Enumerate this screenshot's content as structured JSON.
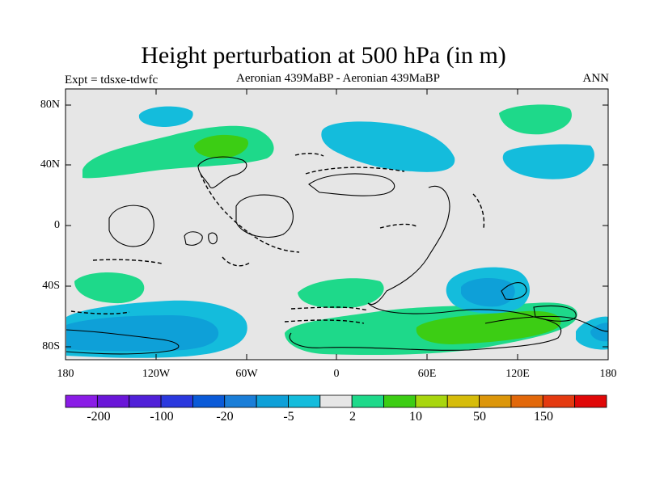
{
  "title": "Height perturbation at 500 hPa (in m)",
  "left_label": "Expt = tdsxe-tdwfc",
  "center_label": "Aeronian 439MaBP - Aeronian 439MaBP",
  "right_label": "ANN",
  "lat_ticks": [
    "80N",
    "40N",
    "0",
    "40S",
    "80S"
  ],
  "lon_ticks": [
    "180",
    "120W",
    "60W",
    "0",
    "60E",
    "120E",
    "180"
  ],
  "colorbar": {
    "colors": [
      "#8a1ce6",
      "#6a16d8",
      "#5020d8",
      "#2a38de",
      "#0a5ad8",
      "#1a7ed8",
      "#0ea0d8",
      "#14bcdc",
      "#e6e6e6",
      "#1ed98a",
      "#3ccd14",
      "#a8d60e",
      "#d6bc0a",
      "#dc960a",
      "#e2680a",
      "#e43a10",
      "#e00808"
    ],
    "labels": [
      "-200",
      "-100",
      "-20",
      "-5",
      "2",
      "10",
      "50",
      "150"
    ]
  },
  "colors": {
    "background": "#e6e6e6",
    "cyan": "#14bcdc",
    "blue": "#0ea0d8",
    "green_light": "#1ed98a",
    "green_dark": "#3ccd14"
  }
}
